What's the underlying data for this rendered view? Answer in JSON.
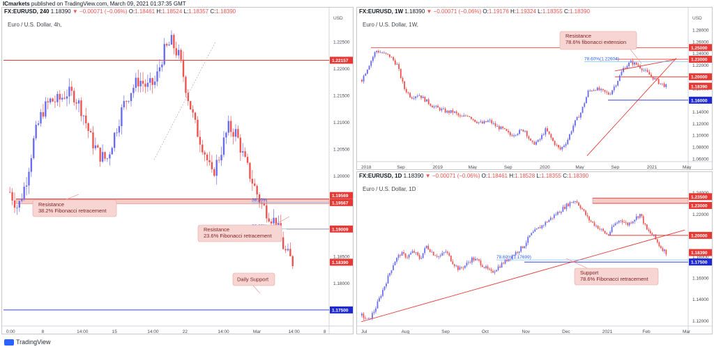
{
  "header": {
    "author": "ICmarkets",
    "published": "published on TradingView.com, March 09, 2021 01:37:35 GMT"
  },
  "footer": {
    "brand": "TradingView"
  },
  "colors": {
    "up": "#6a6cf0",
    "down": "#ef5350",
    "resistance": "#e53935",
    "support": "#1e2ad0",
    "fibline": "#64b5f6",
    "zone": "#f4c7c3",
    "callout_bg": "#f7d5d3",
    "callout_text": "#7b1f1f"
  },
  "panels": {
    "left": {
      "symbol": "FX:EURUSD, 240",
      "last": "1.18390",
      "change_arrow": "▼",
      "change": "−0.00071 (−0.06%)",
      "O": "1.18461",
      "H": "1.18524",
      "L": "1.18357",
      "C": "1.18390",
      "subtitle": "Euro / U.S. Dollar, 4h,",
      "currency": "USD",
      "price_ticks": [
        "1.22500",
        "1.22000",
        "1.21500",
        "1.21000",
        "1.20500",
        "1.20000",
        "1.19500",
        "1.18500",
        "1.18000",
        "1.17500"
      ],
      "time_ticks": [
        "0:00",
        "8",
        "14:00",
        "15",
        "14:00",
        "22",
        "14:00",
        "Mar",
        "14:00",
        "8"
      ],
      "price_labels": [
        {
          "text": "1.22157",
          "kind": "res"
        },
        {
          "text": "1.19569",
          "kind": "res"
        },
        {
          "text": "1.19567",
          "kind": "res"
        },
        {
          "text": "1.19009",
          "kind": "res"
        },
        {
          "text": "1.18390",
          "kind": "res"
        },
        {
          "text": "1.17500",
          "kind": "sup"
        }
      ],
      "fib_labels": [
        "38.20%",
        "23.60%"
      ],
      "callouts": [
        {
          "line1": "Resistance",
          "line2": "38.2% Fibonacci retracement"
        },
        {
          "line1": "Resistance",
          "line2": "23.6% Fibonacci retracement"
        },
        {
          "line1": "Daily Support",
          "line2": ""
        }
      ]
    },
    "top_right": {
      "symbol": "FX:EURUSD, 1W",
      "last": "1.18390",
      "change_arrow": "▼",
      "change": "−0.00071 (−0.06%)",
      "O": "1.19176",
      "H": "1.19324",
      "L": "1.18355",
      "C": "1.18390",
      "subtitle": "Euro / U.S. Dollar, 1W,",
      "currency": "USD",
      "price_ticks": [
        "1.28000",
        "1.26000",
        "1.24000",
        "1.22000",
        "1.20000",
        "1.18000",
        "1.16000",
        "1.14000",
        "1.12000",
        "1.10000",
        "1.08000",
        "1.06000"
      ],
      "time_ticks": [
        "2018",
        "Sep",
        "2019",
        "May",
        "Sep",
        "2020",
        "May",
        "Sep",
        "2021",
        "May"
      ],
      "price_labels": [
        {
          "text": "1.25000",
          "kind": "res"
        },
        {
          "text": "1.23000",
          "kind": "res"
        },
        {
          "text": "1.20000",
          "kind": "res"
        },
        {
          "text": "1.18390",
          "kind": "res"
        },
        {
          "text": "1.16000",
          "kind": "sup"
        }
      ],
      "fib_labels": [
        "78.60%(1.22604)"
      ],
      "callouts": [
        {
          "line1": "Resistance",
          "line2": "78.6% fibonacci extension"
        }
      ]
    },
    "bottom_right": {
      "symbol": "FX:EURUSD, 1D",
      "last": "1.18390",
      "change_arrow": "▼",
      "change": "−0.00071 (−0.06%)",
      "O": "1.18461",
      "H": "1.18528",
      "L": "1.18355",
      "C": "1.18390",
      "subtitle": "Euro / U.S. Dollar, 1D",
      "currency": "",
      "price_ticks": [
        "1.24000",
        "1.22000",
        "1.20000",
        "1.18000",
        "1.16000",
        "1.14000",
        "1.12000"
      ],
      "time_ticks": [
        "Jul",
        "Aug",
        "Sep",
        "Oct",
        "Nov",
        "Dec",
        "2021",
        "Feb",
        "Mar"
      ],
      "price_labels": [
        {
          "text": "1.23500",
          "kind": "res"
        },
        {
          "text": "1.23000",
          "kind": "res"
        },
        {
          "text": "1.20000",
          "kind": "res"
        },
        {
          "text": "1.18390",
          "kind": "res"
        },
        {
          "text": "1.17500",
          "kind": "sup"
        }
      ],
      "fib_labels": [
        "78.60%(1.17699)"
      ],
      "callouts": [
        {
          "line1": "Support",
          "line2": "78.6% Fibonacci retracement"
        }
      ]
    }
  },
  "chart_data": [
    {
      "type": "candlestick",
      "title": "Euro / U.S. Dollar, 4h,",
      "ylim": [
        1.172,
        1.228
      ],
      "path": [
        1.197,
        1.194,
        1.199,
        1.207,
        1.212,
        1.214,
        1.214,
        1.2155,
        1.215,
        1.212,
        1.207,
        1.204,
        1.203,
        1.208,
        1.213,
        1.216,
        1.218,
        1.2165,
        1.2175,
        1.223,
        1.225,
        1.222,
        1.215,
        1.209,
        1.205,
        1.2,
        1.204,
        1.209,
        1.208,
        1.203,
        1.199,
        1.195,
        1.193,
        1.191,
        1.186,
        1.1839
      ],
      "levels": {
        "resistance": [
          1.22157,
          1.19569,
          1.19567,
          1.19009
        ],
        "support": [
          1.175
        ],
        "last": 1.1839
      }
    },
    {
      "type": "candlestick",
      "title": "Euro / U.S. Dollar, 1W,",
      "ylim": [
        1.055,
        1.292
      ],
      "path": [
        1.195,
        1.22,
        1.245,
        1.24,
        1.235,
        1.22,
        1.18,
        1.165,
        1.17,
        1.16,
        1.15,
        1.145,
        1.14,
        1.14,
        1.13,
        1.135,
        1.125,
        1.12,
        1.125,
        1.115,
        1.11,
        1.1,
        1.105,
        1.11,
        1.085,
        1.09,
        1.11,
        1.09,
        1.075,
        1.09,
        1.12,
        1.14,
        1.175,
        1.18,
        1.175,
        1.17,
        1.19,
        1.215,
        1.225,
        1.22,
        1.21,
        1.2,
        1.19,
        1.1839
      ],
      "levels": {
        "resistance": [
          1.25,
          1.23,
          1.2,
          1.1839
        ],
        "support": [
          1.16
        ],
        "last": 1.1839
      }
    },
    {
      "type": "candlestick",
      "title": "Euro / U.S. Dollar, 1D",
      "ylim": [
        1.115,
        1.245
      ],
      "path": [
        1.125,
        1.12,
        1.13,
        1.145,
        1.16,
        1.175,
        1.183,
        1.18,
        1.185,
        1.178,
        1.19,
        1.183,
        1.18,
        1.185,
        1.175,
        1.168,
        1.172,
        1.178,
        1.176,
        1.17,
        1.165,
        1.17,
        1.175,
        1.18,
        1.185,
        1.19,
        1.2,
        1.205,
        1.21,
        1.215,
        1.22,
        1.225,
        1.23,
        1.233,
        1.225,
        1.215,
        1.21,
        1.205,
        1.2,
        1.21,
        1.215,
        1.21,
        1.215,
        1.22,
        1.205,
        1.2,
        1.19,
        1.1839
      ],
      "levels": {
        "resistance": [
          1.235,
          1.23,
          1.2,
          1.1839
        ],
        "support": [
          1.175
        ],
        "last": 1.1839
      }
    }
  ]
}
